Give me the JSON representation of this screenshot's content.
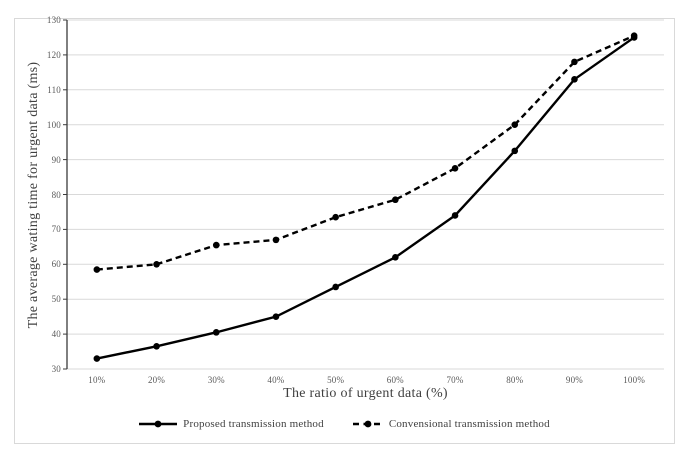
{
  "figure": {
    "background": "#ffffff",
    "frame_border_color": "#d9d9d9"
  },
  "chart_data": {
    "type": "line",
    "title": "",
    "xlabel": "The ratio of urgent data (%)",
    "ylabel": "The average wating time for urgent data (ms)",
    "categories": [
      "10%",
      "20%",
      "30%",
      "40%",
      "50%",
      "60%",
      "70%",
      "80%",
      "90%",
      "100%"
    ],
    "series": [
      {
        "name": "Proposed transmission method",
        "style": "solid",
        "marker": "circle",
        "color": "#000000",
        "values": [
          33,
          36.5,
          40.5,
          45,
          53.5,
          62,
          74,
          92.5,
          113,
          125
        ]
      },
      {
        "name": "Convensional transmission method",
        "style": "dashed",
        "marker": "circle",
        "color": "#000000",
        "values": [
          58.5,
          60,
          65.5,
          67,
          73.5,
          78.5,
          87.5,
          100,
          118,
          125.5
        ]
      }
    ],
    "y_axis": {
      "min": 30,
      "max": 130,
      "step": 10,
      "tick_labels": [
        "30",
        "40",
        "50",
        "60",
        "70",
        "80",
        "90",
        "100",
        "110",
        "120",
        "130"
      ]
    },
    "grid": true,
    "legend_position": "bottom",
    "colors": {
      "gridline": "#d9d9d9",
      "axis_line": "#3b3b3b",
      "tick_text": "#595959",
      "title_text": "#404040"
    }
  }
}
